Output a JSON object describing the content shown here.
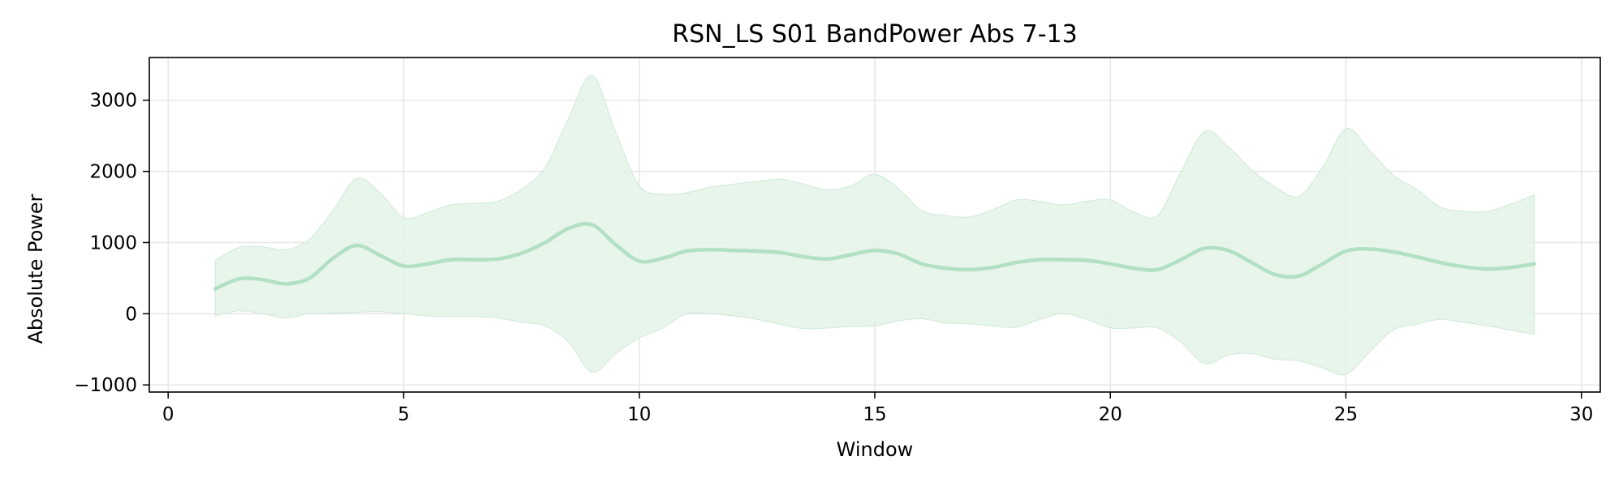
{
  "chart_data": {
    "type": "line",
    "title": "RSN_LS S01 BandPower Abs 7-13",
    "xlabel": "Window",
    "ylabel": "Absolute Power",
    "xlim": [
      -0.4,
      30.4
    ],
    "ylim": [
      -1100,
      3600
    ],
    "xticks": [
      0,
      5,
      10,
      15,
      20,
      25,
      30
    ],
    "yticks": [
      -1000,
      0,
      1000,
      2000,
      3000
    ],
    "xtick_labels": [
      "0",
      "5",
      "10",
      "15",
      "20",
      "25",
      "30"
    ],
    "ytick_labels": [
      "−1000",
      "0",
      "1000",
      "2000",
      "3000"
    ],
    "grid": true,
    "legend": "none",
    "colors": {
      "line": "#b2e0c2",
      "band": "#e3f3e8"
    },
    "series": [
      {
        "x": [
          1,
          1.5,
          2,
          2.5,
          3,
          3.5,
          4,
          4.5,
          5,
          5.5,
          6,
          6.5,
          7,
          7.5,
          8,
          8.5,
          9,
          9.5,
          10,
          10.5,
          11,
          11.5,
          12,
          12.5,
          13,
          13.5,
          14,
          14.5,
          15,
          15.5,
          16,
          16.5,
          17,
          17.5,
          18,
          18.5,
          19,
          19.5,
          20,
          20.5,
          21,
          21.5,
          22,
          22.5,
          23,
          23.5,
          24,
          24.5,
          25,
          25.5,
          26,
          26.5,
          27,
          27.5,
          28,
          28.5,
          29
        ],
        "mean": [
          350,
          490,
          480,
          420,
          500,
          780,
          960,
          820,
          670,
          700,
          760,
          760,
          770,
          850,
          1000,
          1200,
          1250,
          970,
          740,
          780,
          880,
          900,
          890,
          880,
          860,
          800,
          770,
          830,
          890,
          840,
          700,
          640,
          620,
          650,
          720,
          760,
          760,
          750,
          700,
          640,
          620,
          760,
          920,
          890,
          720,
          550,
          530,
          700,
          880,
          910,
          870,
          800,
          720,
          660,
          630,
          650,
          700
        ],
        "lower": [
          -30,
          40,
          0,
          -60,
          0,
          10,
          20,
          30,
          0,
          -30,
          -40,
          -40,
          -60,
          -120,
          -170,
          -400,
          -820,
          -560,
          -340,
          -200,
          0,
          0,
          -30,
          -80,
          -150,
          -210,
          -200,
          -180,
          -170,
          -100,
          -70,
          -130,
          -140,
          -170,
          -190,
          -80,
          0,
          -80,
          -200,
          -200,
          -200,
          -400,
          -700,
          -580,
          -560,
          -640,
          -660,
          -760,
          -850,
          -540,
          -230,
          -150,
          -80,
          -120,
          -170,
          -230,
          -290
        ],
        "upper": [
          750,
          930,
          940,
          900,
          1050,
          1450,
          1900,
          1700,
          1350,
          1420,
          1530,
          1550,
          1580,
          1750,
          2050,
          2750,
          3350,
          2550,
          1800,
          1680,
          1700,
          1780,
          1820,
          1860,
          1890,
          1820,
          1740,
          1800,
          1960,
          1760,
          1450,
          1380,
          1360,
          1460,
          1600,
          1580,
          1530,
          1580,
          1600,
          1430,
          1380,
          2000,
          2560,
          2350,
          2020,
          1780,
          1650,
          2050,
          2600,
          2300,
          1950,
          1750,
          1500,
          1440,
          1440,
          1540,
          1670
        ]
      }
    ]
  }
}
